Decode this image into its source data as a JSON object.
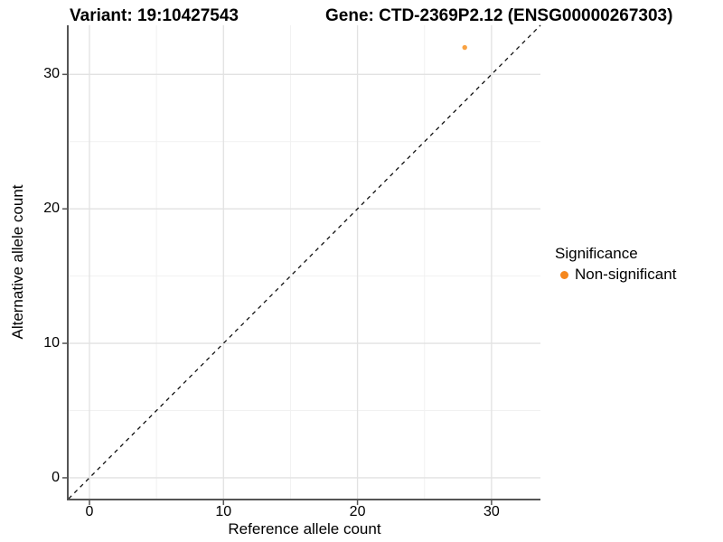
{
  "titles": {
    "variant": "Variant: 19:10427543",
    "gene": "Gene: CTD-2369P2.12 (ENSG00000267303)"
  },
  "axes": {
    "x": {
      "label": "Reference allele count"
    },
    "y": {
      "label": "Alternative allele count"
    }
  },
  "legend": {
    "title": "Significance",
    "items": [
      {
        "label": "Non-significant",
        "color": "#F5871E"
      }
    ]
  },
  "chart_data": {
    "type": "scatter",
    "title": "Variant: 19:10427543   Gene: CTD-2369P2.12 (ENSG00000267303)",
    "xlabel": "Reference allele count",
    "ylabel": "Alternative allele count",
    "xlim": [
      -1.55,
      33.65
    ],
    "ylim": [
      -1.55,
      33.65
    ],
    "x_ticks": [
      0,
      10,
      20,
      30
    ],
    "y_ticks": [
      0,
      10,
      20,
      30
    ],
    "x_minor_ticks": [
      5,
      15,
      25
    ],
    "y_minor_ticks": [
      5,
      15,
      25
    ],
    "grid": true,
    "legend_position": "right",
    "series": [
      {
        "name": "Non-significant",
        "color": "#F9A242",
        "points": [
          {
            "x": 28,
            "y": 32
          }
        ]
      }
    ],
    "reference_line": {
      "type": "identity",
      "equation": "y = x",
      "style": "dashed",
      "color": "#111111"
    },
    "style": {
      "grid_major_color": "#e2e2e2",
      "grid_minor_color": "#f1f1f1",
      "axis_color": "#555555",
      "point_radius": 2.7,
      "dash_pattern": "4.5 4.5"
    }
  }
}
